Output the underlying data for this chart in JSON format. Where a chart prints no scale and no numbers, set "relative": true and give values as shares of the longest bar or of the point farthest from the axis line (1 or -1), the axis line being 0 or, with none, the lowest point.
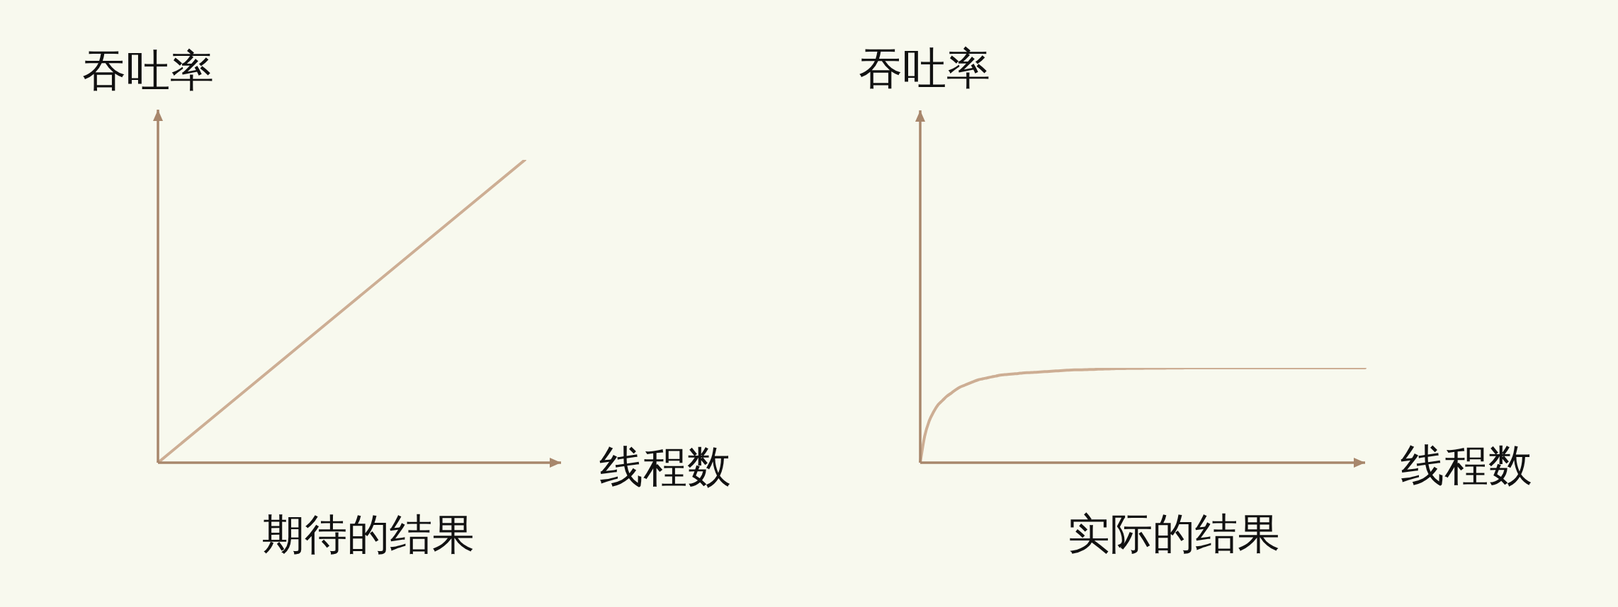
{
  "chart_data": [
    {
      "type": "line",
      "title": "期待的结果",
      "xlabel": "线程数",
      "ylabel": "吞吐率",
      "relative": true,
      "categories": [
        null,
        null,
        null,
        null,
        null
      ],
      "series": [
        {
          "color": "#cdae94",
          "values": [
            0,
            0.25,
            0.5,
            0.75,
            1
          ]
        }
      ]
    },
    {
      "type": "line",
      "title": "实际的结果",
      "xlabel": "线程数",
      "ylabel": "吞吐率",
      "relative": true,
      "categories": [
        null,
        null,
        null,
        null,
        null,
        null,
        null,
        null,
        null,
        null,
        null,
        null,
        null,
        null,
        null,
        null,
        null,
        null,
        null,
        null,
        null,
        null,
        null,
        null,
        null,
        null,
        null,
        null,
        null,
        null,
        null,
        null,
        null,
        null,
        null,
        null,
        null,
        null,
        null,
        null,
        null,
        null,
        null,
        null,
        null,
        null,
        null,
        null,
        null,
        null,
        null,
        null,
        null,
        null,
        null,
        null,
        null,
        null,
        null,
        null,
        null,
        null,
        null,
        null,
        null,
        null,
        null,
        null,
        null,
        null,
        null,
        null,
        null,
        null,
        null,
        null,
        null,
        null,
        null,
        null,
        null,
        null,
        null,
        null,
        null,
        null,
        null,
        null,
        null,
        null,
        null,
        null,
        null,
        null,
        null,
        null,
        null,
        null,
        null,
        null,
        null
      ],
      "series": [
        {
          "color": "#cdae94",
          "values": [
            0,
            0.28,
            0.438,
            0.535,
            0.61,
            0.656,
            0.701,
            0.735,
            0.769,
            0.798,
            0.817,
            0.837,
            0.856,
            0.873,
            0.884,
            0.894,
            0.904,
            0.913,
            0.924,
            0.929,
            0.933,
            0.937,
            0.941,
            0.946,
            0.949,
            0.951,
            0.954,
            0.957,
            0.96,
            0.963,
            0.966,
            0.969,
            0.972,
            0.975,
            0.978,
            0.979,
            0.98,
            0.981,
            0.983,
            0.984,
            0.986,
            0.987,
            0.989,
            0.99,
            0.992,
            0.993,
            0.993,
            0.994,
            0.994,
            0.995,
            0.995,
            0.996,
            0.996,
            0.996,
            0.997,
            0.997,
            0.998,
            0.998,
            0.999,
            0.999,
            1,
            1,
            1,
            1,
            1,
            1,
            1,
            1,
            1,
            1,
            1,
            1,
            1,
            1,
            1,
            1,
            1,
            1,
            1,
            1,
            1,
            1,
            1,
            1,
            1,
            1,
            1,
            1,
            1,
            1,
            1,
            1,
            1,
            1,
            1,
            1,
            1,
            1,
            1,
            1,
            1
          ]
        }
      ]
    }
  ]
}
